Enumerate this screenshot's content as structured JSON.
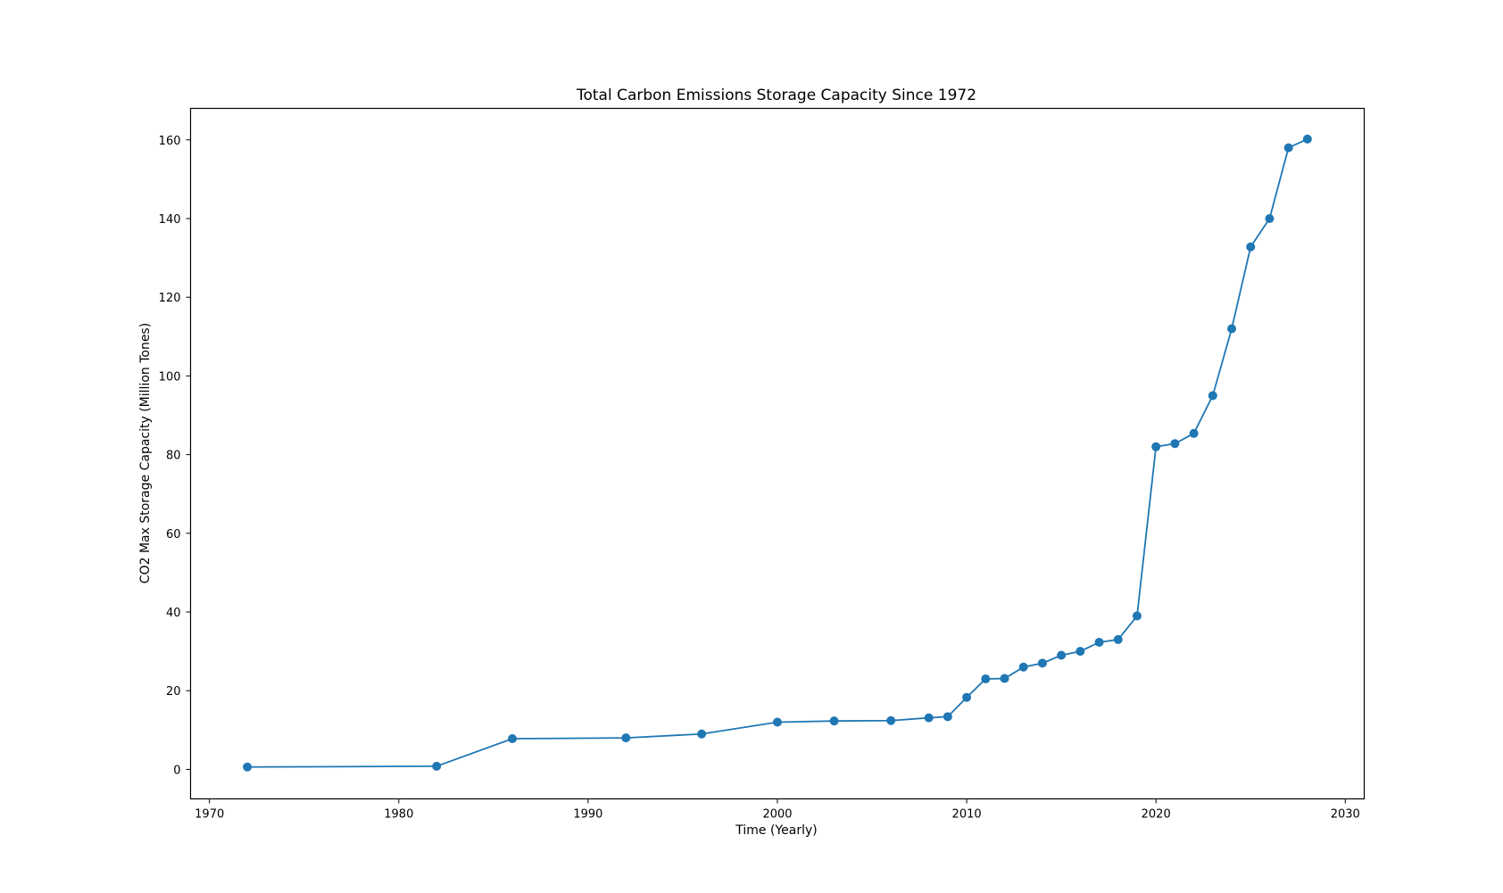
{
  "chart_data": {
    "type": "line",
    "title": "Total Carbon Emissions Storage Capacity Since 1972",
    "xlabel": "Time (Yearly)",
    "ylabel": "CO2 Max Storage Capacity (Million Tones)",
    "xlim": [
      1969,
      2031
    ],
    "ylim": [
      -7.5,
      168
    ],
    "xticks": [
      1970,
      1980,
      1990,
      2000,
      2010,
      2020,
      2030
    ],
    "yticks": [
      0,
      20,
      40,
      60,
      80,
      100,
      120,
      140,
      160
    ],
    "grid": false,
    "series": [
      {
        "color": "#1f77b4",
        "marker": "circle",
        "points": [
          {
            "x": 1972,
            "y": 0.6
          },
          {
            "x": 1982,
            "y": 0.8
          },
          {
            "x": 1986,
            "y": 7.8
          },
          {
            "x": 1992,
            "y": 8.0
          },
          {
            "x": 1996,
            "y": 9.0
          },
          {
            "x": 2000,
            "y": 12.0
          },
          {
            "x": 2003,
            "y": 12.3
          },
          {
            "x": 2006,
            "y": 12.4
          },
          {
            "x": 2008,
            "y": 13.1
          },
          {
            "x": 2009,
            "y": 13.4
          },
          {
            "x": 2010,
            "y": 18.3
          },
          {
            "x": 2011,
            "y": 23.0
          },
          {
            "x": 2012,
            "y": 23.1
          },
          {
            "x": 2013,
            "y": 26.0
          },
          {
            "x": 2014,
            "y": 27.0
          },
          {
            "x": 2015,
            "y": 29.0
          },
          {
            "x": 2016,
            "y": 30.0
          },
          {
            "x": 2017,
            "y": 32.3
          },
          {
            "x": 2018,
            "y": 33.0
          },
          {
            "x": 2019,
            "y": 39.0
          },
          {
            "x": 2020,
            "y": 82.0
          },
          {
            "x": 2021,
            "y": 82.8
          },
          {
            "x": 2022,
            "y": 85.4
          },
          {
            "x": 2023,
            "y": 95.0
          },
          {
            "x": 2024,
            "y": 112.0
          },
          {
            "x": 2025,
            "y": 132.8
          },
          {
            "x": 2026,
            "y": 140.0
          },
          {
            "x": 2027,
            "y": 158.0
          },
          {
            "x": 2028,
            "y": 160.2
          }
        ]
      }
    ]
  }
}
